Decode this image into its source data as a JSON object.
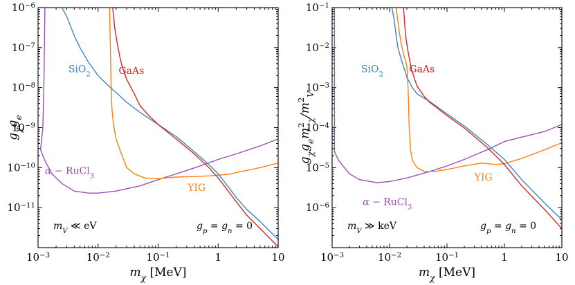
{
  "colors": {
    "SiO2": "#3d85c6",
    "GaAs": "#d62728",
    "YIG": "#ff7f0e",
    "RuCl3": "#9b4fb5"
  },
  "chart_data": [
    {
      "type": "line",
      "xscale": "log",
      "yscale": "log",
      "xlim": [
        0.001,
        10
      ],
      "ylim": [
        1e-12,
        1e-06
      ],
      "xlabel": "m_χ [MeV]",
      "ylabel": "g_χ g_e",
      "xticks": [
        {
          "v": 0.001,
          "b": "10",
          "e": "−3"
        },
        {
          "v": 0.01,
          "b": "10",
          "e": "−2"
        },
        {
          "v": 0.1,
          "b": "10",
          "e": "−1"
        },
        {
          "v": 1,
          "b": "1",
          "e": ""
        },
        {
          "v": 10,
          "b": "10",
          "e": ""
        }
      ],
      "yticks": [
        {
          "v": 1e-11,
          "b": "10",
          "e": "−11"
        },
        {
          "v": 1e-10,
          "b": "10",
          "e": "−10"
        },
        {
          "v": 1e-09,
          "b": "10",
          "e": "−9"
        },
        {
          "v": 1e-08,
          "b": "10",
          "e": "−8"
        },
        {
          "v": 1e-07,
          "b": "10",
          "e": "−7"
        },
        {
          "v": 1e-06,
          "b": "10",
          "e": "−6"
        }
      ],
      "annotations": {
        "left": {
          "main": "m",
          "sub": "V",
          "rest": " ≪ eV"
        },
        "right": {
          "a": "g",
          "asub": "p",
          "b": " = g",
          "bsub": "n",
          "c": " = 0"
        }
      },
      "series": [
        {
          "name": "SiO2",
          "label": {
            "main": "SiO",
            "sub": "2"
          },
          "label_at": [
            0.0032,
            2.4e-08
          ],
          "points": [
            [
              0.0025,
              1e-06
            ],
            [
              0.003,
              6e-07
            ],
            [
              0.004,
              2e-07
            ],
            [
              0.005,
              1e-07
            ],
            [
              0.007,
              4.2e-08
            ],
            [
              0.01,
              2e-08
            ],
            [
              0.015,
              1.1e-08
            ],
            [
              0.02,
              7.5e-09
            ],
            [
              0.03,
              4.3e-09
            ],
            [
              0.05,
              2.4e-09
            ],
            [
              0.1,
              1.2e-09
            ],
            [
              0.2,
              6e-10
            ],
            [
              0.4,
              2.5e-10
            ],
            [
              0.7,
              1.2e-10
            ],
            [
              1,
              7e-11
            ],
            [
              1.5,
              3.2e-11
            ],
            [
              2,
              1.8e-11
            ],
            [
              3,
              9e-12
            ],
            [
              5,
              4.5e-12
            ],
            [
              10,
              1.6e-12
            ]
          ]
        },
        {
          "name": "GaAs",
          "label": {
            "main": "GaAs",
            "sub": ""
          },
          "label_at": [
            0.022,
            2.2e-08
          ],
          "points": [
            [
              0.0175,
              1e-06
            ],
            [
              0.019,
              3e-07
            ],
            [
              0.021,
              1.2e-07
            ],
            [
              0.023,
              6e-08
            ],
            [
              0.025,
              3.5e-08
            ],
            [
              0.03,
              1.6e-08
            ],
            [
              0.04,
              7e-09
            ],
            [
              0.05,
              3.5e-09
            ],
            [
              0.07,
              2e-09
            ],
            [
              0.1,
              1.2e-09
            ],
            [
              0.2,
              5.2e-10
            ],
            [
              0.4,
              2.2e-10
            ],
            [
              0.7,
              1e-10
            ],
            [
              1,
              5.5e-11
            ],
            [
              1.5,
              2.5e-11
            ],
            [
              2,
              1.4e-11
            ],
            [
              3,
              6.5e-12
            ],
            [
              5,
              3e-12
            ],
            [
              10,
              1.05e-12
            ]
          ]
        },
        {
          "name": "YIG",
          "label": {
            "main": "YIG",
            "sub": ""
          },
          "label_at": [
            0.31,
            2.6e-11
          ],
          "points": [
            [
              0.0155,
              1e-06
            ],
            [
              0.016,
              1e-07
            ],
            [
              0.0165,
              1e-08
            ],
            [
              0.017,
              3e-09
            ],
            [
              0.018,
              1.2e-09
            ],
            [
              0.02,
              5e-10
            ],
            [
              0.025,
              2e-10
            ],
            [
              0.03,
              1e-10
            ],
            [
              0.04,
              7e-11
            ],
            [
              0.06,
              5.5e-11
            ],
            [
              0.1,
              5.3e-11
            ],
            [
              0.2,
              5.8e-11
            ],
            [
              0.4,
              6e-11
            ],
            [
              0.7,
              6.2e-11
            ],
            [
              1,
              6.5e-11
            ],
            [
              1.5,
              6.8e-11
            ],
            [
              2,
              7.5e-11
            ],
            [
              3,
              8.5e-11
            ],
            [
              5,
              1e-10
            ],
            [
              10,
              1.3e-10
            ]
          ]
        },
        {
          "name": "RuCl3",
          "label": {
            "main": "α − RuCl",
            "sub": "3"
          },
          "label_at": [
            0.0013,
            7e-11
          ],
          "points": [
            [
              0.0013,
              1e-06
            ],
            [
              0.00125,
              1e-08
            ],
            [
              0.0012,
              1e-09
            ],
            [
              0.0011,
              2.8e-10
            ],
            [
              0.0013,
              1.5e-10
            ],
            [
              0.0017,
              7e-11
            ],
            [
              0.0025,
              4e-11
            ],
            [
              0.004,
              2.6e-11
            ],
            [
              0.007,
              2.3e-11
            ],
            [
              0.01,
              2.3e-11
            ],
            [
              0.02,
              2.6e-11
            ],
            [
              0.05,
              3.5e-11
            ],
            [
              0.1,
              5e-11
            ],
            [
              0.3,
              8.5e-11
            ],
            [
              0.5,
              1.1e-10
            ],
            [
              1,
              1.6e-10
            ],
            [
              2,
              2.2e-10
            ],
            [
              5,
              3.5e-10
            ],
            [
              10,
              5.2e-10
            ]
          ]
        }
      ]
    },
    {
      "type": "line",
      "xscale": "log",
      "yscale": "log",
      "xlim": [
        0.001,
        10
      ],
      "ylim": [
        1e-07,
        0.1
      ],
      "xlabel": "m_χ [MeV]",
      "ylabel": "g_χ g_e m_χ^2 / m_V^2",
      "xticks": [
        {
          "v": 0.001,
          "b": "10",
          "e": "−3"
        },
        {
          "v": 0.01,
          "b": "10",
          "e": "−2"
        },
        {
          "v": 0.1,
          "b": "10",
          "e": "−1"
        },
        {
          "v": 1,
          "b": "1",
          "e": ""
        },
        {
          "v": 10,
          "b": "10",
          "e": ""
        }
      ],
      "yticks": [
        {
          "v": 1e-06,
          "b": "10",
          "e": "−6"
        },
        {
          "v": 1e-05,
          "b": "10",
          "e": "−5"
        },
        {
          "v": 0.0001,
          "b": "10",
          "e": "−4"
        },
        {
          "v": 0.001,
          "b": "10",
          "e": "−3"
        },
        {
          "v": 0.01,
          "b": "10",
          "e": "−2"
        },
        {
          "v": 0.1,
          "b": "10",
          "e": "−1"
        }
      ],
      "annotations": {
        "left": {
          "main": "m",
          "sub": "V",
          "rest": " ≫ keV"
        },
        "right": {
          "a": "g",
          "asub": "p",
          "b": " = g",
          "bsub": "n",
          "c": " = 0"
        }
      },
      "series": [
        {
          "name": "SiO2",
          "label": {
            "main": "SiO",
            "sub": "2"
          },
          "label_at": [
            0.0032,
            0.0024
          ],
          "points": [
            [
              0.011,
              0.1
            ],
            [
              0.012,
              0.05
            ],
            [
              0.013,
              0.02
            ],
            [
              0.014,
              0.01
            ],
            [
              0.016,
              0.005
            ],
            [
              0.018,
              0.003
            ],
            [
              0.02,
              0.0018
            ],
            [
              0.025,
              0.001
            ],
            [
              0.03,
              0.0007
            ],
            [
              0.05,
              0.00045
            ],
            [
              0.1,
              0.00022
            ],
            [
              0.2,
              0.00011
            ],
            [
              0.5,
              3.8e-05
            ],
            [
              1,
              1.6e-05
            ],
            [
              2,
              5e-06
            ],
            [
              5,
              1.3e-06
            ],
            [
              10,
              5e-07
            ]
          ]
        },
        {
          "name": "GaAs",
          "label": {
            "main": "GaAs",
            "sub": ""
          },
          "label_at": [
            0.022,
            0.0024
          ],
          "points": [
            [
              0.0175,
              0.1
            ],
            [
              0.019,
              0.02
            ],
            [
              0.021,
              0.008
            ],
            [
              0.023,
              0.004
            ],
            [
              0.025,
              0.0024
            ],
            [
              0.03,
              0.0011
            ],
            [
              0.04,
              0.0006
            ],
            [
              0.05,
              0.00043
            ],
            [
              0.1,
              0.0002
            ],
            [
              0.2,
              9.8e-05
            ],
            [
              0.5,
              3.2e-05
            ],
            [
              1,
              1.2e-05
            ],
            [
              2,
              3.5e-06
            ],
            [
              5,
              9e-07
            ],
            [
              10,
              3e-07
            ]
          ]
        },
        {
          "name": "YIG",
          "label": {
            "main": "YIG",
            "sub": ""
          },
          "label_at": [
            0.3,
            4.8e-06
          ],
          "points": [
            [
              0.013,
              0.1
            ],
            [
              0.0145,
              0.03
            ],
            [
              0.016,
              0.012
            ],
            [
              0.018,
              0.006
            ],
            [
              0.02,
              0.0035
            ],
            [
              0.021,
              0.001
            ],
            [
              0.022,
              0.0001
            ],
            [
              0.023,
              3e-05
            ],
            [
              0.025,
              1.5e-05
            ],
            [
              0.03,
              1e-05
            ],
            [
              0.04,
              8e-06
            ],
            [
              0.06,
              8e-06
            ],
            [
              0.1,
              9e-06
            ],
            [
              0.2,
              1.1e-05
            ],
            [
              0.4,
              1.3e-05
            ],
            [
              0.7,
              1.2e-05
            ],
            [
              1,
              1.25e-05
            ],
            [
              2,
              1.7e-05
            ],
            [
              5,
              2.8e-05
            ],
            [
              10,
              4.2e-05
            ]
          ]
        },
        {
          "name": "RuCl3",
          "label": {
            "main": "α − RuCl",
            "sub": "3"
          },
          "label_at": [
            0.0034,
            1.15e-06
          ],
          "points": [
            [
              0.0011,
              0.1
            ],
            [
              0.0011,
              0.001
            ],
            [
              0.0011,
              0.0001
            ],
            [
              0.0011,
              2.5e-05
            ],
            [
              0.0013,
              1.5e-05
            ],
            [
              0.002,
              7e-06
            ],
            [
              0.003,
              5e-06
            ],
            [
              0.006,
              4.2e-06
            ],
            [
              0.01,
              4.5e-06
            ],
            [
              0.02,
              5.5e-06
            ],
            [
              0.05,
              8e-06
            ],
            [
              0.1,
              1.1e-05
            ],
            [
              0.2,
              1.6e-05
            ],
            [
              0.5,
              2.8e-05
            ],
            [
              1,
              4.5e-05
            ],
            [
              2,
              5.8e-05
            ],
            [
              5,
              8e-05
            ],
            [
              10,
              0.00012
            ]
          ]
        }
      ]
    }
  ]
}
